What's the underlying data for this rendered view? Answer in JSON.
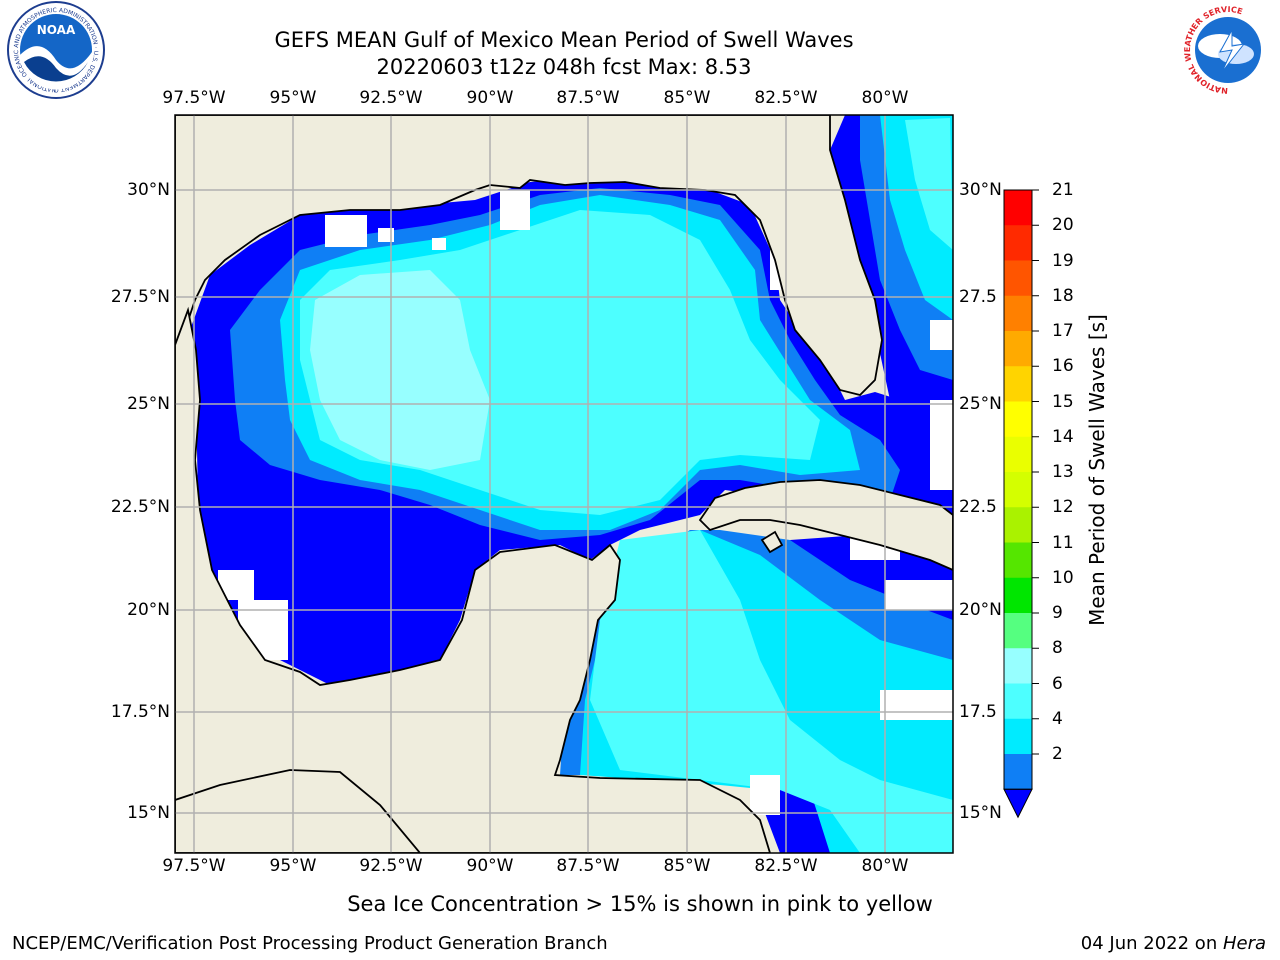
{
  "header": {
    "title_line1": "GEFS MEAN Gulf of Mexico Mean Period of Swell Waves",
    "title_line2": "20220603 t12z 048h fcst   Max: 8.53"
  },
  "logos": {
    "left": {
      "name": "noaa-logo",
      "text": "NOAA",
      "ring_text": "NATIONAL OCEANIC AND ATMOSPHERIC ADMINISTRATION · U.S. DEPARTMENT OF COMMERCE"
    },
    "right": {
      "name": "nws-logo",
      "ring_text": "NATIONAL WEATHER SERVICE"
    }
  },
  "map": {
    "lon_labels": [
      "97.5°W",
      "95°W",
      "92.5°W",
      "90°W",
      "87.5°W",
      "85°W",
      "82.5°W",
      "80°W"
    ],
    "lat_labels_left": [
      "30°N",
      "27.5°N",
      "25°N",
      "22.5°N",
      "20°N",
      "17.5°N",
      "15°N"
    ],
    "lat_labels_right": [
      "30°N",
      "27.5",
      "25°N",
      "22.5",
      "20°N",
      "17.5",
      "15°N"
    ],
    "colors": {
      "land": "#efeddd",
      "ocean_deep": "#0000ff",
      "ocean_blue": "#0f7ff5",
      "ocean_cyan": "#00ebff",
      "ocean_aqua": "#4dffff",
      "ocean_light": "#97ffff",
      "nodata": "#ffffff",
      "grid": "#b0b0b0"
    }
  },
  "colorbar": {
    "title": "Mean Period of Swell Waves [s]",
    "ticks": [
      "21",
      "20",
      "19",
      "18",
      "17",
      "16",
      "15",
      "14",
      "13",
      "12",
      "11",
      "10",
      "9",
      "8",
      "6",
      "4",
      "2"
    ],
    "colors": [
      "#ff0000",
      "#ff2a00",
      "#ff5500",
      "#ff8000",
      "#ffaa00",
      "#ffd400",
      "#ffff00",
      "#eaff00",
      "#d4ff00",
      "#aaf200",
      "#55e600",
      "#00e600",
      "#55ff80",
      "#97ffff",
      "#4dffff",
      "#00ebff",
      "#0f7ff5",
      "#0000ff"
    ]
  },
  "note": "Sea Ice Concentration > 15% is shown in pink to yellow",
  "footer": {
    "left": "NCEP/EMC/Verification Post Processing Product Generation Branch",
    "right_date": "04 Jun 2022 on ",
    "right_machine": "Hera"
  }
}
